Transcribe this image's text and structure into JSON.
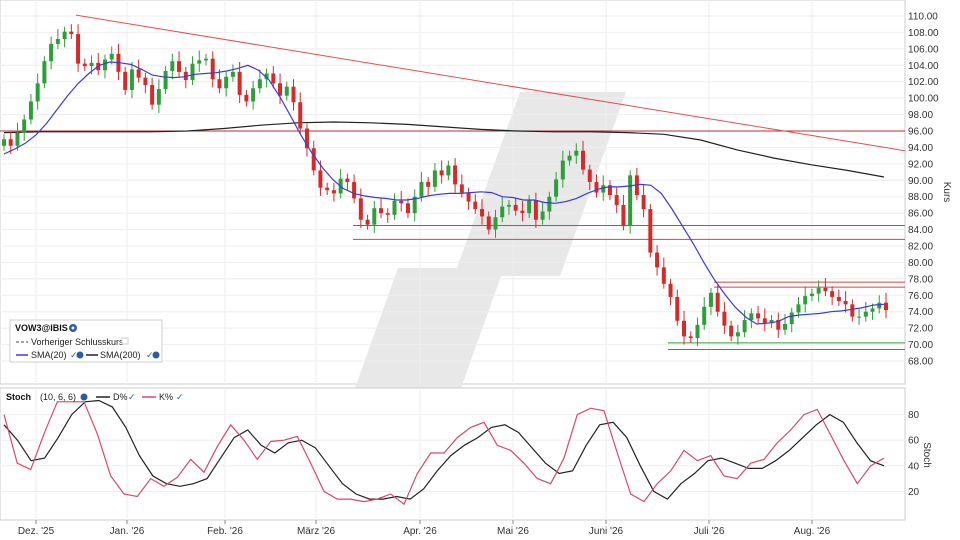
{
  "chart_data": [
    {
      "type": "candlestick",
      "symbol": "VOW3@IBIS",
      "legend": [
        {
          "label": "VOW3@IBIS",
          "icon": "settings-icon"
        },
        {
          "label": "Vorheriger Schlusskurs",
          "style": "dashed",
          "color": "#444444"
        },
        {
          "label": "SMA(20)",
          "color": "#3a3adc",
          "icons": [
            "check-icon",
            "settings-icon"
          ]
        },
        {
          "label": "SMA(200)",
          "color": "#222222",
          "icons": [
            "check-icon",
            "settings-icon"
          ]
        }
      ],
      "ylabel": "Kurs",
      "ylim": [
        66,
        111
      ],
      "yticks": [
        "110.00",
        "108.00",
        "106.00",
        "104.00",
        "102.00",
        "100.00",
        "98.00",
        "96.00",
        "94.00",
        "92.00",
        "90.00",
        "88.00",
        "86.00",
        "84.00",
        "82.00",
        "80.00",
        "78.00",
        "76.00",
        "74.00",
        "72.00",
        "70.00",
        "68.00"
      ],
      "xticks": [
        "Dez. '25",
        "Jan. '26",
        "Feb. '26",
        "März '26",
        "Apr. '26",
        "Mai '26",
        "Juni '26",
        "Juli '26",
        "Aug. '26"
      ],
      "up_color": "#2e9e3a",
      "down_color": "#d42a2a",
      "sma20_color": "#3a3adc",
      "sma200_color": "#222222",
      "candles_close": [
        95.0,
        94.2,
        95.8,
        97.4,
        99.6,
        101.8,
        104.5,
        106.6,
        107.2,
        108.1,
        107.8,
        104.2,
        103.9,
        104.3,
        103.4,
        104.7,
        105.4,
        103.2,
        101.0,
        103.5,
        102.5,
        101.6,
        99.2,
        101.1,
        103.3,
        104.5,
        103.2,
        102.2,
        104.2,
        104.6,
        104.8,
        102.3,
        101.2,
        102.6,
        103.2,
        100.4,
        99.6,
        101.2,
        102.3,
        103.0,
        101.8,
        100.3,
        101.4,
        99.5,
        96.3,
        93.9,
        91.2,
        89.1,
        88.8,
        88.4,
        90.2,
        89.8,
        87.8,
        85.2,
        84.6,
        86.6,
        86.0,
        85.8,
        87.5,
        87.2,
        86.0,
        88.0,
        89.8,
        89.2,
        91.2,
        90.6,
        91.8,
        89.5,
        88.5,
        87.4,
        86.5,
        85.6,
        84.0,
        85.5,
        86.8,
        87.0,
        86.3,
        86.0,
        87.6,
        85.2,
        86.2,
        88.0,
        90.1,
        92.4,
        93.0,
        93.6,
        91.3,
        89.8,
        88.5,
        89.4,
        88.2,
        87.0,
        84.5,
        90.6,
        88.2,
        86.5,
        81.2,
        79.4,
        77.4,
        75.8,
        72.9,
        71.0,
        70.8,
        72.4,
        74.6,
        76.3,
        74.0,
        72.3,
        71.0,
        71.5,
        73.0,
        73.8,
        73.2,
        72.6,
        73.0,
        71.8,
        72.5,
        73.9,
        74.9,
        75.9,
        76.2,
        76.9,
        76.5,
        75.8,
        75.3,
        74.9,
        73.4,
        73.4,
        74.0,
        74.4,
        75.1,
        74.2
      ],
      "sma20_close": [
        93.2,
        93.8,
        94.5,
        95.5,
        96.9,
        98.6,
        100.3,
        101.8,
        103.0,
        104.0,
        104.4,
        104.3,
        104.1,
        103.5,
        102.8,
        102.6,
        102.5,
        102.6,
        102.9,
        103.0,
        103.1,
        103.3,
        103.6,
        104.0,
        103.4,
        102.2,
        100.2,
        97.9,
        95.5,
        93.4,
        91.6,
        90.1,
        89.0,
        88.4,
        88.1,
        87.9,
        87.8,
        87.6,
        87.6,
        87.8,
        88.1,
        88.3,
        88.4,
        88.4,
        88.5,
        88.6,
        88.5,
        88.0,
        87.9,
        87.6,
        87.6,
        87.3,
        87.2,
        87.4,
        87.8,
        88.4,
        88.9,
        89.2,
        89.2,
        89.3,
        89.5,
        89.4,
        88.4,
        86.5,
        84.4,
        82.3,
        80.0,
        77.9,
        76.1,
        74.5,
        73.3,
        72.5,
        72.6,
        72.8,
        73.4,
        73.6,
        73.7,
        73.8,
        74.0,
        74.1,
        74.3,
        74.5,
        74.8,
        74.9
      ],
      "sma200_close": [
        95.8,
        95.9,
        95.9,
        95.9,
        95.9,
        96.0,
        96.3,
        96.7,
        97.0,
        97.1,
        97.0,
        96.8,
        96.5,
        96.2,
        96.0,
        95.9,
        95.9,
        95.8,
        95.6,
        94.9,
        93.7,
        92.7,
        91.9,
        91.2,
        90.4
      ],
      "support_resistance": [
        96.0,
        84.5,
        82.8,
        77.6,
        77.0,
        70.2,
        69.4
      ],
      "trendline": [
        110.1,
        93.6
      ]
    },
    {
      "type": "line",
      "title": "Stoch",
      "params": "(10, 6, 6)",
      "ylabel": "Stoch",
      "ylim": [
        0,
        100
      ],
      "yticks": [
        "80",
        "60",
        "40",
        "20"
      ],
      "series": [
        {
          "name": "D%",
          "color": "#222222",
          "values": [
            72,
            60,
            44,
            46,
            62,
            80,
            90,
            91,
            86,
            70,
            48,
            32,
            26,
            24,
            26,
            30,
            46,
            62,
            68,
            56,
            50,
            58,
            60,
            54,
            40,
            26,
            18,
            14,
            14,
            16,
            14,
            22,
            36,
            48,
            56,
            62,
            70,
            72,
            66,
            54,
            42,
            34,
            36,
            56,
            72,
            74,
            62,
            40,
            20,
            14,
            26,
            34,
            44,
            46,
            42,
            38,
            38,
            44,
            52,
            62,
            72,
            80,
            74,
            58,
            44,
            40
          ]
        },
        {
          "name": "K%",
          "color": "#d44a6a",
          "values": [
            80,
            42,
            37,
            65,
            90,
            90,
            90,
            65,
            32,
            18,
            16,
            30,
            24,
            31,
            45,
            35,
            55,
            72,
            60,
            45,
            59,
            60,
            63,
            42,
            20,
            14,
            14,
            12,
            14,
            18,
            10,
            34,
            50,
            50,
            62,
            70,
            74,
            56,
            52,
            42,
            30,
            26,
            46,
            80,
            85,
            83,
            50,
            18,
            12,
            26,
            36,
            52,
            44,
            48,
            32,
            30,
            42,
            45,
            58,
            68,
            80,
            84,
            64,
            44,
            26,
            40,
            46
          ]
        }
      ]
    }
  ],
  "icons": {
    "legend_settings": "settings-icon",
    "legend_check": "check-icon",
    "watermark": "brand-watermark-icon"
  }
}
